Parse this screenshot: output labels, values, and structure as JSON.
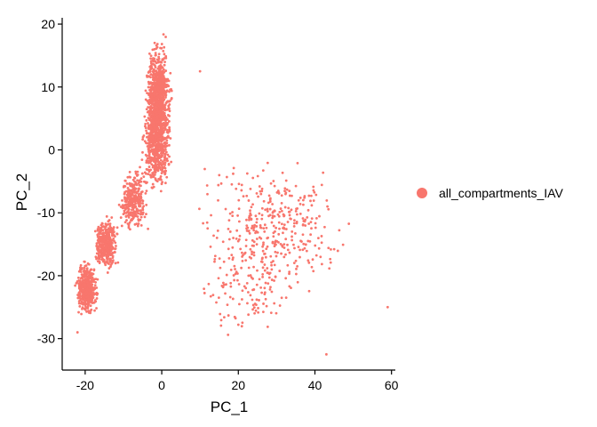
{
  "chart_data": {
    "type": "scatter",
    "xlabel": "PC_1",
    "ylabel": "PC_2",
    "xlim": [
      -26,
      61
    ],
    "ylim": [
      -35,
      21
    ],
    "xticks": [
      -20,
      0,
      20,
      40,
      60
    ],
    "yticks": [
      -30,
      -20,
      -10,
      0,
      10,
      20
    ],
    "grid": false,
    "legend_position": "right",
    "series": [
      {
        "name": "all_compartments_IAV",
        "color": "#F8766D",
        "clusters": [
          {
            "x_range": [
              -5,
              3
            ],
            "y_range": [
              -4,
              19
            ],
            "share": 0.34
          },
          {
            "x_range": [
              -6,
              3
            ],
            "y_range": [
              -8,
              8
            ],
            "share": 0.12
          },
          {
            "x_range": [
              -12,
              -3
            ],
            "y_range": [
              -14,
              -2
            ],
            "share": 0.1
          },
          {
            "x_range": [
              -18,
              -11
            ],
            "y_range": [
              -20,
              -10
            ],
            "share": 0.14
          },
          {
            "x_range": [
              -23,
              -16
            ],
            "y_range": [
              -27,
              -17
            ],
            "share": 0.14
          },
          {
            "x_range": [
              5,
              52
            ],
            "y_range": [
              -24,
              0
            ],
            "share": 0.12
          },
          {
            "x_range": [
              5,
              42
            ],
            "y_range": [
              -32,
              -12
            ],
            "share": 0.04
          }
        ],
        "outliers": [
          [
            10,
            12.5
          ],
          [
            59,
            -25
          ],
          [
            43,
            -32.5
          ],
          [
            -4,
            -2
          ],
          [
            -22,
            -29
          ]
        ]
      }
    ]
  }
}
